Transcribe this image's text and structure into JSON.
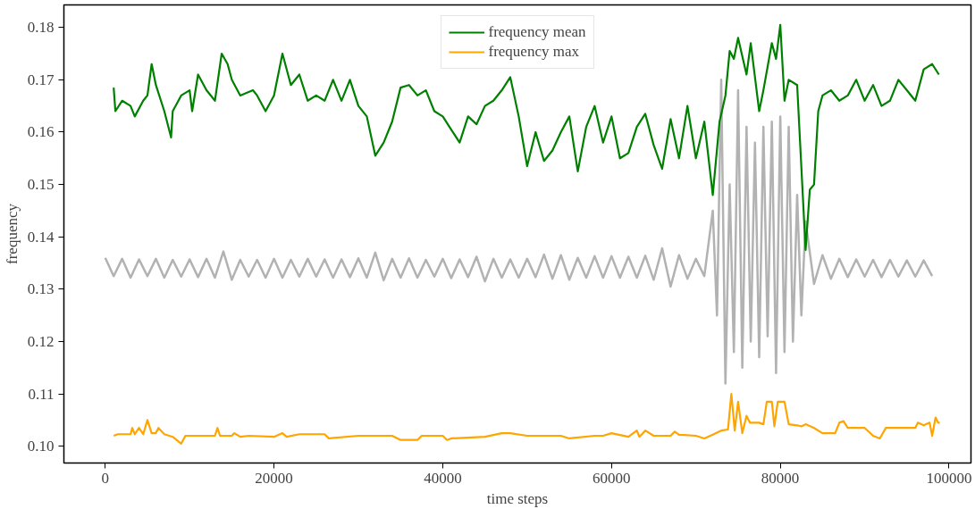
{
  "chart_data": {
    "type": "line",
    "xlabel": "time steps",
    "ylabel": "frequency",
    "xlim": [
      -4900,
      102600
    ],
    "ylim": [
      0.0968,
      0.1843
    ],
    "xticks": [
      0,
      20000,
      40000,
      60000,
      80000,
      100000
    ],
    "yticks": [
      {
        "value": 0.1,
        "label": "0.10"
      },
      {
        "value": 0.11,
        "label": "0.11"
      },
      {
        "value": 0.12,
        "label": "0.12"
      },
      {
        "value": 0.13,
        "label": "0.13"
      },
      {
        "value": 0.14,
        "label": "0.14"
      },
      {
        "value": 0.15,
        "label": "0.15"
      },
      {
        "value": 0.16,
        "label": "0.16"
      },
      {
        "value": 0.17,
        "label": "0.17"
      },
      {
        "value": 0.18,
        "label": "0.18"
      }
    ],
    "grid": false,
    "legend": "top",
    "marker": "none",
    "line_style": "solid",
    "series": [
      {
        "color": "#b2b2b2",
        "x": [
          0,
          1000,
          2000,
          3000,
          4000,
          5000,
          6000,
          7000,
          8000,
          9000,
          10000,
          11000,
          12000,
          13000,
          14000,
          15000,
          16000,
          17000,
          18000,
          19000,
          20000,
          21000,
          22000,
          23000,
          24000,
          25000,
          26000,
          27000,
          28000,
          29000,
          30000,
          31000,
          32000,
          33000,
          34000,
          35000,
          36000,
          37000,
          38000,
          39000,
          40000,
          41000,
          42000,
          43000,
          44000,
          45000,
          46000,
          47000,
          48000,
          49000,
          50000,
          51000,
          52000,
          53000,
          54000,
          55000,
          56000,
          57000,
          58000,
          59000,
          60000,
          61000,
          62000,
          63000,
          64000,
          65000,
          66000,
          67000,
          68000,
          69000,
          70000,
          71000,
          72000,
          72500,
          73000,
          73500,
          74000,
          74500,
          75000,
          75500,
          76000,
          76500,
          77000,
          77500,
          78000,
          78500,
          79000,
          79500,
          80000,
          80500,
          81000,
          81500,
          82000,
          82500,
          83000,
          84000,
          85000,
          86000,
          87000,
          88000,
          89000,
          90000,
          91000,
          92000,
          93000,
          94000,
          95000,
          96000,
          97000,
          98000
        ],
        "values": [
          0.136,
          0.1325,
          0.1358,
          0.1322,
          0.1357,
          0.1325,
          0.1358,
          0.1322,
          0.1356,
          0.1324,
          0.1357,
          0.1323,
          0.1358,
          0.1322,
          0.1372,
          0.1318,
          0.1356,
          0.1324,
          0.1356,
          0.1322,
          0.1358,
          0.1322,
          0.1356,
          0.1324,
          0.1358,
          0.1324,
          0.1357,
          0.1322,
          0.1357,
          0.1323,
          0.1359,
          0.1322,
          0.137,
          0.1317,
          0.1358,
          0.1322,
          0.1359,
          0.1322,
          0.1356,
          0.1324,
          0.1358,
          0.1321,
          0.1357,
          0.1323,
          0.1362,
          0.1315,
          0.1358,
          0.1322,
          0.1357,
          0.1322,
          0.1358,
          0.1323,
          0.1366,
          0.132,
          0.1365,
          0.1318,
          0.136,
          0.1322,
          0.1363,
          0.1322,
          0.1363,
          0.1322,
          0.1362,
          0.1322,
          0.1364,
          0.1318,
          0.1378,
          0.1305,
          0.1365,
          0.132,
          0.1358,
          0.1325,
          0.145,
          0.125,
          0.17,
          0.112,
          0.15,
          0.118,
          0.168,
          0.115,
          0.161,
          0.12,
          0.158,
          0.117,
          0.161,
          0.121,
          0.162,
          0.114,
          0.163,
          0.118,
          0.161,
          0.12,
          0.148,
          0.125,
          0.143,
          0.131,
          0.1365,
          0.132,
          0.1358,
          0.1323,
          0.1357,
          0.1324,
          0.1356,
          0.1323,
          0.1356,
          0.1324,
          0.1355,
          0.1324,
          0.1355,
          0.1325
        ]
      },
      {
        "name": "frequency mean",
        "color": "#008000",
        "x": [
          1000,
          1200,
          2000,
          3000,
          3500,
          4500,
          5000,
          5500,
          6000,
          7000,
          7800,
          8000,
          9000,
          10000,
          10300,
          11000,
          12000,
          13000,
          13800,
          14500,
          15000,
          16000,
          17500,
          18000,
          19000,
          20000,
          21000,
          22000,
          23000,
          24000,
          25000,
          26000,
          27000,
          28000,
          29000,
          30000,
          31000,
          32000,
          33000,
          34000,
          35000,
          36000,
          37000,
          38000,
          39000,
          40000,
          41000,
          42000,
          43000,
          44000,
          45000,
          46000,
          47000,
          48000,
          49000,
          50000,
          51000,
          52000,
          53000,
          54000,
          55000,
          56000,
          57000,
          58000,
          59000,
          60000,
          61000,
          62000,
          63000,
          64000,
          65000,
          66000,
          67000,
          68000,
          69000,
          70000,
          71000,
          72000,
          72800,
          73500,
          74000,
          74500,
          75000,
          76000,
          76500,
          77500,
          78000,
          79000,
          79500,
          80000,
          80500,
          81000,
          82000,
          83000,
          83500,
          84000,
          84500,
          85000,
          86000,
          87000,
          88000,
          89000,
          90000,
          91000,
          92000,
          93000,
          94000,
          95000,
          96000,
          97000,
          98000,
          98800
        ],
        "values": [
          0.1685,
          0.164,
          0.166,
          0.165,
          0.163,
          0.166,
          0.167,
          0.173,
          0.169,
          0.164,
          0.159,
          0.164,
          0.167,
          0.168,
          0.164,
          0.171,
          0.168,
          0.166,
          0.175,
          0.173,
          0.17,
          0.167,
          0.168,
          0.167,
          0.164,
          0.167,
          0.175,
          0.169,
          0.171,
          0.166,
          0.167,
          0.166,
          0.17,
          0.166,
          0.17,
          0.165,
          0.163,
          0.1555,
          0.158,
          0.162,
          0.1685,
          0.169,
          0.167,
          0.168,
          0.164,
          0.163,
          0.1605,
          0.158,
          0.163,
          0.1615,
          0.165,
          0.166,
          0.168,
          0.1705,
          0.163,
          0.1535,
          0.16,
          0.1545,
          0.1565,
          0.16,
          0.163,
          0.1525,
          0.161,
          0.165,
          0.158,
          0.163,
          0.155,
          0.156,
          0.161,
          0.1635,
          0.1575,
          0.153,
          0.1625,
          0.155,
          0.165,
          0.155,
          0.162,
          0.148,
          0.162,
          0.167,
          0.1755,
          0.174,
          0.178,
          0.171,
          0.177,
          0.164,
          0.168,
          0.177,
          0.174,
          0.1805,
          0.166,
          0.17,
          0.169,
          0.1375,
          0.149,
          0.15,
          0.164,
          0.167,
          0.168,
          0.166,
          0.167,
          0.17,
          0.166,
          0.169,
          0.165,
          0.166,
          0.17,
          0.168,
          0.166,
          0.172,
          0.173,
          0.171
        ]
      },
      {
        "name": "frequency max",
        "color": "#ffa500",
        "x": [
          1000,
          1500,
          3000,
          3200,
          3500,
          4000,
          4500,
          5000,
          5500,
          6000,
          6300,
          7000,
          8000,
          9000,
          9500,
          13000,
          13300,
          13600,
          15000,
          15300,
          16000,
          17000,
          20000,
          21000,
          21500,
          23000,
          26000,
          26500,
          30000,
          32000,
          34000,
          35000,
          37000,
          37500,
          40000,
          40500,
          41000,
          45000,
          47000,
          48000,
          50000,
          54000,
          55000,
          58000,
          59000,
          60000,
          62000,
          63000,
          63300,
          64000,
          65000,
          67000,
          67500,
          68000,
          70000,
          71000,
          72000,
          73000,
          73800,
          74200,
          74600,
          75000,
          75500,
          76000,
          76400,
          77500,
          78000,
          78400,
          79000,
          79300,
          79700,
          80500,
          81000,
          82000,
          82500,
          83000,
          84000,
          85000,
          86000,
          86500,
          87000,
          87500,
          88000,
          90000,
          91000,
          91800,
          92500,
          93000,
          96000,
          96300,
          97000,
          97700,
          98000,
          98400,
          98700,
          98900
        ],
        "values": [
          0.102,
          0.1023,
          0.1023,
          0.1035,
          0.1023,
          0.1035,
          0.1023,
          0.105,
          0.1025,
          0.1025,
          0.1035,
          0.1023,
          0.1018,
          0.1005,
          0.102,
          0.102,
          0.1035,
          0.102,
          0.102,
          0.1025,
          0.1018,
          0.102,
          0.1018,
          0.1025,
          0.1018,
          0.1023,
          0.1023,
          0.1015,
          0.102,
          0.102,
          0.102,
          0.1012,
          0.1012,
          0.102,
          0.102,
          0.1012,
          0.1015,
          0.1018,
          0.1025,
          0.1025,
          0.102,
          0.102,
          0.1015,
          0.102,
          0.102,
          0.1025,
          0.1018,
          0.103,
          0.1018,
          0.103,
          0.102,
          0.102,
          0.1028,
          0.1022,
          0.102,
          0.1015,
          0.1022,
          0.103,
          0.1032,
          0.11,
          0.103,
          0.1085,
          0.1025,
          0.1058,
          0.1045,
          0.1045,
          0.1042,
          0.1085,
          0.1085,
          0.1038,
          0.1085,
          0.1085,
          0.1042,
          0.104,
          0.1038,
          0.1042,
          0.1035,
          0.1025,
          0.1025,
          0.1025,
          0.1045,
          0.1048,
          0.1035,
          0.1035,
          0.102,
          0.1015,
          0.1035,
          0.1035,
          0.1035,
          0.1045,
          0.104,
          0.1045,
          0.102,
          0.1055,
          0.1045,
          0.1045
        ]
      }
    ]
  }
}
